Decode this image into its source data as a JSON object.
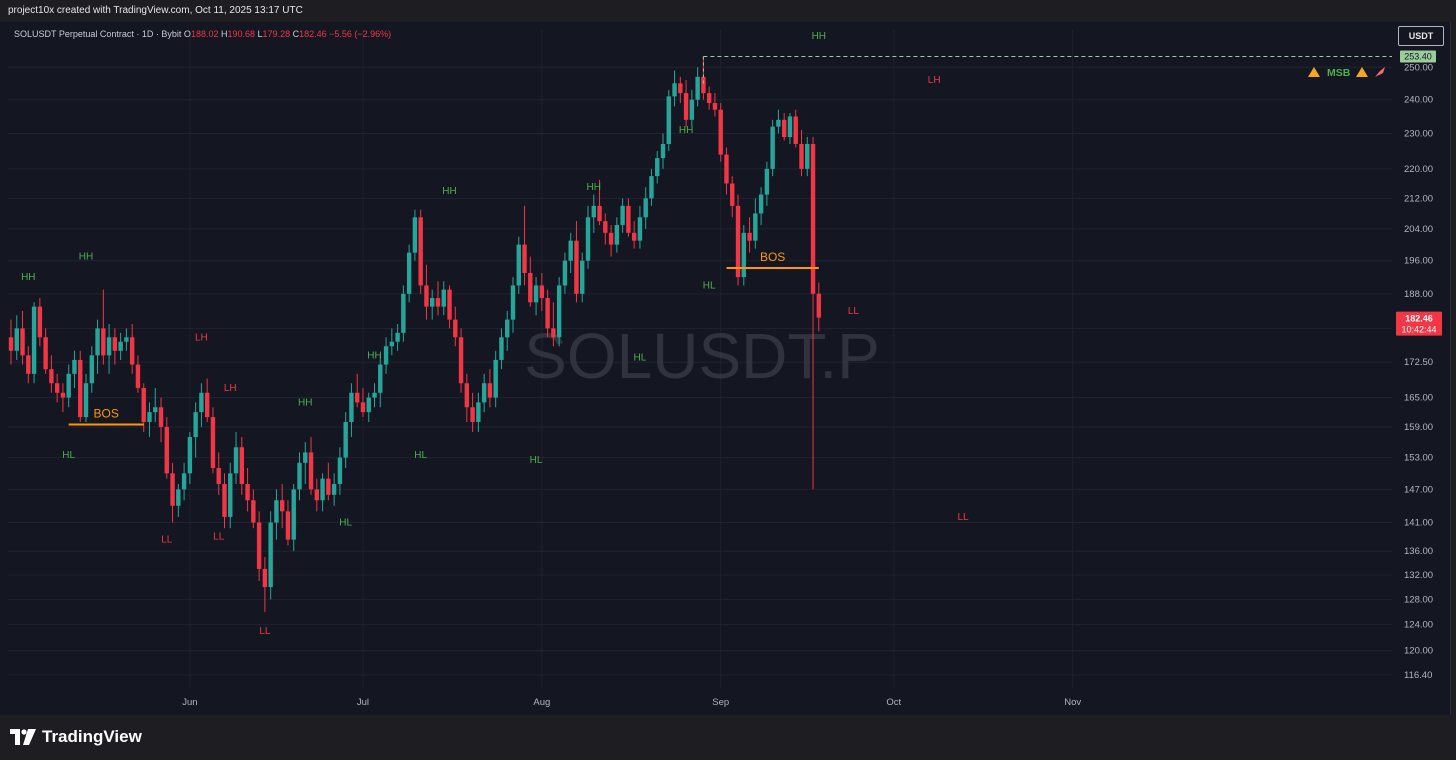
{
  "header": {
    "caption": "project10x created with TradingView.com, Oct 11, 2025 13:17 UTC"
  },
  "legend": {
    "symbol": "SOLUSDT Perpetual Contract · 1D · Bybit",
    "o_label": "O",
    "o": "188.02",
    "h_label": "H",
    "h": "190.68",
    "l_label": "L",
    "l": "179.28",
    "c_label": "C",
    "c": "182.46",
    "change": "−5.56 (−2.96%)"
  },
  "unit_button": "USDT",
  "watermark": "SOLUSDT.P",
  "brand": "TradingView",
  "colors": {
    "background": "#141722",
    "up": "#26a69a",
    "down": "#f23645",
    "bos_line": "#ff9800",
    "label_green": "#4caf50",
    "label_red": "#f23645",
    "grid": "#1f2330"
  },
  "chart_data": {
    "type": "candlestick",
    "y_scale": "log",
    "ylim": [
      114.5,
      262
    ],
    "y_ticks": [
      "116.40",
      "120.00",
      "124.00",
      "128.00",
      "132.00",
      "136.00",
      "141.00",
      "147.00",
      "153.00",
      "159.00",
      "165.00",
      "172.50",
      "180.00",
      "188.00",
      "196.00",
      "204.00",
      "212.00",
      "220.00",
      "230.00",
      "240.00",
      "250.00"
    ],
    "x_ticks": [
      {
        "label": "Jun",
        "date": "2025-06-01"
      },
      {
        "label": "Jul",
        "date": "2025-07-01"
      },
      {
        "label": "Aug",
        "date": "2025-08-01"
      },
      {
        "label": "Sep",
        "date": "2025-09-01"
      },
      {
        "label": "Oct",
        "date": "2025-10-01"
      },
      {
        "label": "Nov",
        "date": "2025-11-01"
      }
    ],
    "first_date": "2025-05-01",
    "candles": [
      [
        178,
        182,
        172,
        175
      ],
      [
        175,
        183,
        173,
        180
      ],
      [
        180,
        184,
        172,
        174
      ],
      [
        174,
        176,
        168,
        170
      ],
      [
        170,
        186,
        168,
        185
      ],
      [
        185,
        187,
        176,
        178
      ],
      [
        178,
        180,
        170,
        171
      ],
      [
        171,
        174,
        166,
        168
      ],
      [
        168,
        170,
        164,
        166
      ],
      [
        166,
        168,
        162,
        165
      ],
      [
        165,
        172,
        163,
        170
      ],
      [
        170,
        175,
        167,
        173
      ],
      [
        173,
        175,
        160,
        161
      ],
      [
        161,
        170,
        160,
        168
      ],
      [
        168,
        176,
        166,
        174
      ],
      [
        174,
        182,
        170,
        180
      ],
      [
        180,
        189,
        172,
        174
      ],
      [
        174,
        181,
        170,
        178
      ],
      [
        178,
        180,
        172,
        175
      ],
      [
        175,
        179,
        173,
        177
      ],
      [
        177,
        180,
        175,
        178
      ],
      [
        178,
        181,
        170,
        172
      ],
      [
        172,
        174,
        166,
        167
      ],
      [
        167,
        168,
        158,
        160
      ],
      [
        160,
        164,
        157,
        162
      ],
      [
        162,
        167,
        160,
        163
      ],
      [
        163,
        165,
        156,
        159
      ],
      [
        159,
        161,
        149,
        150
      ],
      [
        150,
        152,
        141,
        144
      ],
      [
        144,
        148,
        142,
        147
      ],
      [
        147,
        152,
        145,
        150
      ],
      [
        150,
        158,
        148,
        157
      ],
      [
        157,
        164,
        153,
        162
      ],
      [
        162,
        168,
        159,
        166
      ],
      [
        166,
        169,
        160,
        161
      ],
      [
        161,
        163,
        150,
        151
      ],
      [
        151,
        154,
        146,
        148
      ],
      [
        148,
        150,
        140,
        142
      ],
      [
        142,
        152,
        140,
        150
      ],
      [
        150,
        158,
        148,
        155
      ],
      [
        155,
        157,
        146,
        148
      ],
      [
        148,
        151,
        143,
        145
      ],
      [
        145,
        147,
        140,
        141
      ],
      [
        141,
        143,
        131,
        133
      ],
      [
        133,
        135,
        126,
        130
      ],
      [
        130,
        143,
        128,
        141
      ],
      [
        141,
        147,
        138,
        145
      ],
      [
        145,
        148,
        140,
        143
      ],
      [
        143,
        145,
        137,
        138
      ],
      [
        138,
        148,
        136,
        147
      ],
      [
        147,
        154,
        145,
        152
      ],
      [
        152,
        156,
        148,
        154
      ],
      [
        154,
        157,
        146,
        147
      ],
      [
        147,
        149,
        143,
        145
      ],
      [
        145,
        150,
        143,
        149
      ],
      [
        149,
        152,
        145,
        146
      ],
      [
        146,
        150,
        144,
        148
      ],
      [
        148,
        155,
        146,
        153
      ],
      [
        153,
        162,
        151,
        160
      ],
      [
        160,
        168,
        157,
        166
      ],
      [
        166,
        170,
        163,
        164
      ],
      [
        164,
        167,
        161,
        162
      ],
      [
        162,
        166,
        160,
        165
      ],
      [
        165,
        168,
        163,
        166
      ],
      [
        166,
        174,
        163,
        172
      ],
      [
        172,
        178,
        170,
        176
      ],
      [
        176,
        180,
        174,
        177
      ],
      [
        177,
        181,
        175,
        179
      ],
      [
        179,
        190,
        177,
        188
      ],
      [
        188,
        200,
        186,
        198
      ],
      [
        198,
        209,
        196,
        207
      ],
      [
        207,
        209,
        188,
        190
      ],
      [
        190,
        195,
        182,
        185
      ],
      [
        185,
        189,
        182,
        187
      ],
      [
        187,
        191,
        183,
        185
      ],
      [
        185,
        191,
        183,
        189
      ],
      [
        189,
        190,
        180,
        182
      ],
      [
        182,
        185,
        176,
        178
      ],
      [
        178,
        180,
        166,
        168
      ],
      [
        168,
        170,
        160,
        163
      ],
      [
        163,
        166,
        158,
        160
      ],
      [
        160,
        166,
        158,
        164
      ],
      [
        164,
        170,
        162,
        168
      ],
      [
        168,
        171,
        163,
        165
      ],
      [
        165,
        175,
        163,
        173
      ],
      [
        173,
        180,
        171,
        178
      ],
      [
        178,
        184,
        175,
        182
      ],
      [
        182,
        192,
        179,
        190
      ],
      [
        190,
        202,
        188,
        200
      ],
      [
        200,
        210,
        190,
        193
      ],
      [
        193,
        197,
        185,
        186
      ],
      [
        186,
        192,
        183,
        190
      ],
      [
        190,
        193,
        184,
        187
      ],
      [
        187,
        189,
        178,
        180
      ],
      [
        180,
        186,
        176,
        178
      ],
      [
        178,
        192,
        176,
        190
      ],
      [
        190,
        198,
        188,
        196
      ],
      [
        196,
        203,
        193,
        201
      ],
      [
        201,
        206,
        186,
        188
      ],
      [
        188,
        198,
        186,
        196
      ],
      [
        196,
        210,
        194,
        207
      ],
      [
        207,
        213,
        203,
        210
      ],
      [
        210,
        217,
        205,
        206
      ],
      [
        206,
        208,
        200,
        203
      ],
      [
        203,
        205,
        197,
        200
      ],
      [
        200,
        207,
        198,
        205
      ],
      [
        205,
        212,
        203,
        210
      ],
      [
        210,
        212,
        202,
        203
      ],
      [
        203,
        206,
        199,
        201
      ],
      [
        201,
        210,
        199,
        207
      ],
      [
        207,
        215,
        204,
        212
      ],
      [
        212,
        220,
        210,
        218
      ],
      [
        218,
        225,
        216,
        223
      ],
      [
        223,
        230,
        220,
        227
      ],
      [
        227,
        243,
        225,
        241
      ],
      [
        241,
        249,
        238,
        245
      ],
      [
        245,
        247,
        239,
        242
      ],
      [
        242,
        246,
        232,
        234
      ],
      [
        234,
        243,
        232,
        240
      ],
      [
        240,
        250,
        238,
        247
      ],
      [
        247,
        253.4,
        240,
        242
      ],
      [
        242,
        244,
        237,
        239
      ],
      [
        239,
        242,
        235,
        237
      ],
      [
        237,
        239,
        222,
        224
      ],
      [
        224,
        226,
        213,
        216
      ],
      [
        216,
        218,
        207,
        210
      ],
      [
        210,
        213,
        190,
        192
      ],
      [
        192,
        205,
        190,
        203
      ],
      [
        203,
        207,
        198,
        201
      ],
      [
        201,
        212,
        199,
        208
      ],
      [
        208,
        215,
        205,
        213
      ],
      [
        213,
        222,
        210,
        220
      ],
      [
        220,
        234,
        218,
        232
      ],
      [
        232,
        237,
        230,
        234
      ],
      [
        234,
        236,
        228,
        229
      ],
      [
        229,
        236,
        227,
        235
      ],
      [
        235,
        237,
        226,
        227
      ],
      [
        227,
        231,
        218,
        220
      ],
      [
        220,
        229,
        218,
        227
      ],
      [
        227,
        229,
        147,
        188.02
      ],
      [
        188.02,
        190.68,
        179.28,
        182.46
      ]
    ],
    "current_price": "182.46",
    "countdown": "10:42:44",
    "high_marker": "253.40",
    "bos_lines": [
      {
        "label": "BOS",
        "start_index": 10,
        "end_index": 23,
        "price": 159.5
      },
      {
        "label": "BOS",
        "start_index": 124,
        "end_index": 140,
        "price": 194.2
      }
    ],
    "swing_labels": [
      {
        "text": "HH",
        "index": 3,
        "price": 192,
        "color": "green"
      },
      {
        "text": "HH",
        "index": 13,
        "price": 197,
        "color": "green"
      },
      {
        "text": "HL",
        "index": 10,
        "price": 153.5,
        "color": "green"
      },
      {
        "text": "LH",
        "index": 33,
        "price": 178,
        "color": "red"
      },
      {
        "text": "LH",
        "index": 38,
        "price": 167,
        "color": "red"
      },
      {
        "text": "LL",
        "index": 27,
        "price": 138,
        "color": "red"
      },
      {
        "text": "LL",
        "index": 36,
        "price": 138.5,
        "color": "red"
      },
      {
        "text": "LL",
        "index": 44,
        "price": 123,
        "color": "red"
      },
      {
        "text": "HH",
        "index": 63,
        "price": 174,
        "color": "green"
      },
      {
        "text": "HH",
        "index": 51,
        "price": 164,
        "color": "green"
      },
      {
        "text": "HL",
        "index": 71,
        "price": 153.5,
        "color": "green"
      },
      {
        "text": "HL",
        "index": 58,
        "price": 141,
        "color": "green"
      },
      {
        "text": "HH",
        "index": 76,
        "price": 214,
        "color": "green"
      },
      {
        "text": "HL",
        "index": 91,
        "price": 152.5,
        "color": "green"
      },
      {
        "text": "HH",
        "index": 101,
        "price": 215,
        "color": "green"
      },
      {
        "text": "HL",
        "index": 109,
        "price": 173.5,
        "color": "green"
      },
      {
        "text": "HH",
        "index": 117,
        "price": 231,
        "color": "green"
      },
      {
        "text": "HL",
        "index": 121,
        "price": 190,
        "color": "green"
      },
      {
        "text": "HH",
        "index": 140,
        "price": 260,
        "color": "green"
      },
      {
        "text": "LL",
        "index": 146,
        "price": 184,
        "color": "red"
      },
      {
        "text": "LH",
        "index": 160,
        "price": 246,
        "color": "red"
      },
      {
        "text": "LL",
        "index": 165,
        "price": 142,
        "color": "red"
      }
    ],
    "msb_label": "MSB"
  }
}
